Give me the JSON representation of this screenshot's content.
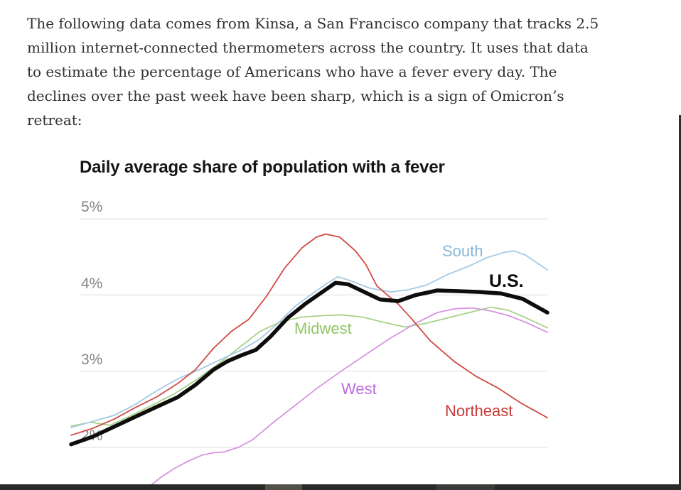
{
  "article": {
    "paragraph_lines": [
      "The following data comes from Kinsa, a San Francisco company that tracks 2.5",
      "million internet-connected thermometers across the country. It uses that data",
      "to estimate the percentage of Americans who have a fever every day. The",
      "declines over the past week have been sharp, which is a sign of Omicron’s",
      "retreat:"
    ]
  },
  "chart_data": {
    "type": "line",
    "title": "Daily average share of population with a fever",
    "yticks": [
      {
        "label": "5%",
        "value": 5
      },
      {
        "label": "4%",
        "value": 4
      },
      {
        "label": "3%",
        "value": 3
      },
      {
        "label": "2%",
        "value": 2
      }
    ],
    "ylim": [
      1.45,
      5.2
    ],
    "grid": "horizontal-only",
    "x_axis_labels_visible": false,
    "legend_position": "inline-labels-on-lines",
    "series": [
      {
        "name": "Midwest",
        "line_color": "#a8d189",
        "label_color": "#92c566",
        "stroke_width": 1.8,
        "x": [
          0,
          4.2,
          8.2,
          12.7,
          17.2,
          21.6,
          26.1,
          30.6,
          35.1,
          39.6,
          44.0,
          48.5,
          53.0,
          56.7,
          61.2,
          65.7,
          70.1,
          74.6,
          79.1,
          83.6,
          88.1,
          91.8,
          95.5,
          100
        ],
        "y": [
          2.28,
          2.33,
          2.29,
          2.42,
          2.56,
          2.7,
          2.88,
          3.08,
          3.3,
          3.52,
          3.65,
          3.71,
          3.73,
          3.74,
          3.71,
          3.64,
          3.58,
          3.63,
          3.7,
          3.77,
          3.84,
          3.8,
          3.7,
          3.57
        ]
      },
      {
        "name": "West",
        "line_color": "#d893e2",
        "label_color": "#bc6bdd",
        "stroke_width": 1.8,
        "x": [
          15.7,
          18.7,
          21.6,
          24.6,
          27.6,
          29.9,
          32.1,
          35.1,
          38.1,
          42.5,
          47.0,
          51.5,
          56.7,
          61.9,
          67.2,
          72.4,
          76.9,
          80.6,
          84.3,
          88.1,
          91.8,
          95.5,
          100
        ],
        "y": [
          1.45,
          1.6,
          1.72,
          1.82,
          1.9,
          1.93,
          1.94,
          2.0,
          2.1,
          2.33,
          2.55,
          2.77,
          3.0,
          3.22,
          3.44,
          3.63,
          3.77,
          3.82,
          3.83,
          3.79,
          3.73,
          3.64,
          3.51
        ]
      },
      {
        "name": "South",
        "line_color": "#a6c9e2",
        "label_color": "#88b6d7",
        "stroke_width": 1.8,
        "x": [
          0,
          4.5,
          9.0,
          13.4,
          17.9,
          22.4,
          26.9,
          31.3,
          35.8,
          39.6,
          43.3,
          47.0,
          50.7,
          53.7,
          56.0,
          59.0,
          62.7,
          67.2,
          70.9,
          74.6,
          79.1,
          83.6,
          87.3,
          91.0,
          93.0,
          95.5,
          100
        ],
        "y": [
          2.26,
          2.34,
          2.42,
          2.56,
          2.74,
          2.9,
          3.02,
          3.15,
          3.28,
          3.42,
          3.62,
          3.85,
          4.02,
          4.15,
          4.24,
          4.18,
          4.09,
          4.04,
          4.07,
          4.13,
          4.27,
          4.38,
          4.49,
          4.56,
          4.58,
          4.52,
          4.33
        ]
      },
      {
        "name": "Northeast",
        "line_color": "#d04a42",
        "label_color": "#c53b38",
        "stroke_width": 1.8,
        "x": [
          0,
          4.5,
          9.0,
          13.4,
          17.9,
          22.4,
          26.1,
          29.9,
          33.6,
          37.3,
          41.0,
          44.8,
          48.5,
          51.5,
          53.4,
          56.4,
          59.7,
          61.9,
          64.2,
          66.4,
          68.7,
          71.6,
          75.4,
          80.6,
          85.1,
          89.6,
          94.5,
          100
        ],
        "y": [
          2.16,
          2.25,
          2.37,
          2.52,
          2.66,
          2.84,
          3.02,
          3.3,
          3.52,
          3.68,
          3.98,
          4.35,
          4.62,
          4.76,
          4.8,
          4.76,
          4.58,
          4.4,
          4.12,
          4.0,
          3.88,
          3.68,
          3.4,
          3.12,
          2.93,
          2.78,
          2.58,
          2.39
        ]
      },
      {
        "name": "U.S.",
        "line_color": "#0d0d0d",
        "label_color": "#0a0a0a",
        "stroke_width": 5.5,
        "x": [
          0,
          4.5,
          9.0,
          13.4,
          17.9,
          22.4,
          26.1,
          29.9,
          32.8,
          35.8,
          38.8,
          41.8,
          45.5,
          49.3,
          53.0,
          55.5,
          58.2,
          61.2,
          64.9,
          68.7,
          72.4,
          76.9,
          81.3,
          85.8,
          90.3,
          94.8,
          100
        ],
        "y": [
          2.04,
          2.14,
          2.27,
          2.4,
          2.53,
          2.66,
          2.82,
          3.02,
          3.13,
          3.21,
          3.28,
          3.45,
          3.7,
          3.89,
          4.05,
          4.16,
          4.14,
          4.05,
          3.94,
          3.92,
          4.0,
          4.06,
          4.05,
          4.04,
          4.02,
          3.95,
          3.77
        ]
      }
    ],
    "gridline_color": "#e3e3e3"
  },
  "window_chrome": {
    "bottom_bar_color": "#2b2a28",
    "bottom_bar_segment1_color": "#535049",
    "bottom_bar_segment2_color": "#3c3b37",
    "right_edge_color": "#2d2d2d"
  }
}
